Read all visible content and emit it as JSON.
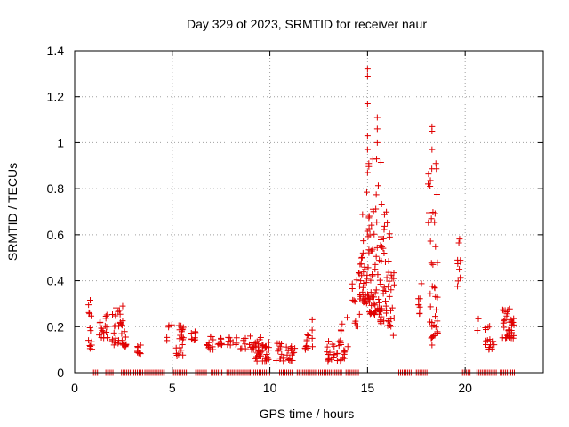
{
  "chart_data": {
    "type": "scatter",
    "title": "Day 329 of 2023, SRMTID for receiver naur",
    "xlabel": "GPS time / hours",
    "ylabel": "SRMTID / TECUs",
    "xlim": [
      0,
      24
    ],
    "ylim": [
      0,
      1.4
    ],
    "xticks": [
      0,
      5,
      10,
      15,
      20
    ],
    "yticks": [
      0,
      0.2,
      0.4,
      0.6,
      0.8,
      1,
      1.2,
      1.4
    ],
    "xtick_labels": [
      "0",
      "5",
      "10",
      "15",
      "20"
    ],
    "ytick_labels": [
      "0",
      "0.2",
      "0.4",
      "0.6",
      "0.8",
      "1",
      "1.2",
      "1.4"
    ],
    "grid": true,
    "marker": "plus",
    "color": "#e00000",
    "zero_ranges": [
      [
        0.9,
        1.2
      ],
      [
        1.6,
        2.0
      ],
      [
        2.4,
        3.5
      ],
      [
        3.6,
        4.6
      ],
      [
        5.0,
        5.8
      ],
      [
        6.2,
        6.8
      ],
      [
        7.0,
        7.6
      ],
      [
        7.8,
        9.0
      ],
      [
        9.0,
        10.0
      ],
      [
        10.5,
        11.2
      ],
      [
        11.4,
        12.4
      ],
      [
        12.5,
        13.7
      ],
      [
        13.9,
        14.6
      ],
      [
        16.6,
        17.3
      ],
      [
        17.5,
        18.1
      ],
      [
        19.8,
        20.3
      ],
      [
        20.6,
        21.6
      ],
      [
        21.8,
        22.6
      ]
    ],
    "clusters": [
      {
        "x": [
          0.7,
          0.9
        ],
        "y": [
          0.1,
          0.32
        ],
        "n": 14
      },
      {
        "x": [
          1.2,
          1.7
        ],
        "y": [
          0.15,
          0.26
        ],
        "n": 18
      },
      {
        "x": [
          1.9,
          2.5
        ],
        "y": [
          0.12,
          0.3
        ],
        "n": 30
      },
      {
        "x": [
          2.5,
          2.7
        ],
        "y": [
          0.1,
          0.18
        ],
        "n": 8
      },
      {
        "x": [
          3.2,
          3.5
        ],
        "y": [
          0.08,
          0.12
        ],
        "n": 10
      },
      {
        "x": [
          4.7,
          5.0
        ],
        "y": [
          0.12,
          0.22
        ],
        "n": 5
      },
      {
        "x": [
          5.2,
          5.6
        ],
        "y": [
          0.07,
          0.21
        ],
        "n": 20
      },
      {
        "x": [
          5.9,
          6.2
        ],
        "y": [
          0.14,
          0.19
        ],
        "n": 8
      },
      {
        "x": [
          6.7,
          7.1
        ],
        "y": [
          0.1,
          0.16
        ],
        "n": 12
      },
      {
        "x": [
          7.3,
          7.6
        ],
        "y": [
          0.12,
          0.18
        ],
        "n": 8
      },
      {
        "x": [
          7.8,
          8.3
        ],
        "y": [
          0.12,
          0.17
        ],
        "n": 10
      },
      {
        "x": [
          8.5,
          9.2
        ],
        "y": [
          0.1,
          0.16
        ],
        "n": 16
      },
      {
        "x": [
          9.2,
          10.0
        ],
        "y": [
          0.05,
          0.16
        ],
        "n": 40
      },
      {
        "x": [
          10.3,
          10.7
        ],
        "y": [
          0.05,
          0.14
        ],
        "n": 12
      },
      {
        "x": [
          10.8,
          11.3
        ],
        "y": [
          0.05,
          0.12
        ],
        "n": 16
      },
      {
        "x": [
          11.7,
          12.2
        ],
        "y": [
          0.1,
          0.24
        ],
        "n": 14
      },
      {
        "x": [
          12.9,
          13.7
        ],
        "y": [
          0.05,
          0.14
        ],
        "n": 22
      },
      {
        "x": [
          13.6,
          14.0
        ],
        "y": [
          0.06,
          0.25
        ],
        "n": 15
      },
      {
        "x": [
          14.2,
          14.6
        ],
        "y": [
          0.2,
          0.55
        ],
        "n": 14
      },
      {
        "x": [
          14.6,
          15.1
        ],
        "y": [
          0.3,
          0.8
        ],
        "n": 40
      },
      {
        "x": [
          15.0,
          15.7
        ],
        "y": [
          0.25,
          0.95
        ],
        "n": 60
      },
      {
        "x": [
          15.6,
          16.2
        ],
        "y": [
          0.2,
          0.75
        ],
        "n": 45
      },
      {
        "x": [
          16.2,
          16.4
        ],
        "y": [
          0.15,
          0.45
        ],
        "n": 10
      },
      {
        "x": [
          17.6,
          17.8
        ],
        "y": [
          0.25,
          0.4
        ],
        "n": 8
      },
      {
        "x": [
          18.1,
          18.6
        ],
        "y": [
          0.15,
          0.9
        ],
        "n": 40
      },
      {
        "x": [
          19.6,
          19.8
        ],
        "y": [
          0.37,
          0.62
        ],
        "n": 10
      },
      {
        "x": [
          20.6,
          20.8
        ],
        "y": [
          0.16,
          0.24
        ],
        "n": 2
      },
      {
        "x": [
          21.0,
          21.5
        ],
        "y": [
          0.1,
          0.22
        ],
        "n": 16
      },
      {
        "x": [
          21.9,
          22.5
        ],
        "y": [
          0.15,
          0.28
        ],
        "n": 40
      }
    ],
    "peaks": [
      {
        "x": 15.0,
        "y": 1.32
      },
      {
        "x": 15.0,
        "y": 1.29
      },
      {
        "x": 15.0,
        "y": 1.17
      },
      {
        "x": 15.0,
        "y": 1.03
      },
      {
        "x": 15.0,
        "y": 0.97
      },
      {
        "x": 15.0,
        "y": 0.87
      },
      {
        "x": 15.5,
        "y": 1.11
      },
      {
        "x": 15.5,
        "y": 1.06
      },
      {
        "x": 15.5,
        "y": 1.0
      },
      {
        "x": 18.3,
        "y": 1.07
      },
      {
        "x": 18.3,
        "y": 1.05
      },
      {
        "x": 18.3,
        "y": 0.97
      },
      {
        "x": 18.5,
        "y": 0.91
      },
      {
        "x": 18.2,
        "y": 0.81
      },
      {
        "x": 18.3,
        "y": 0.12
      },
      {
        "x": 19.7,
        "y": 0.45
      }
    ]
  }
}
